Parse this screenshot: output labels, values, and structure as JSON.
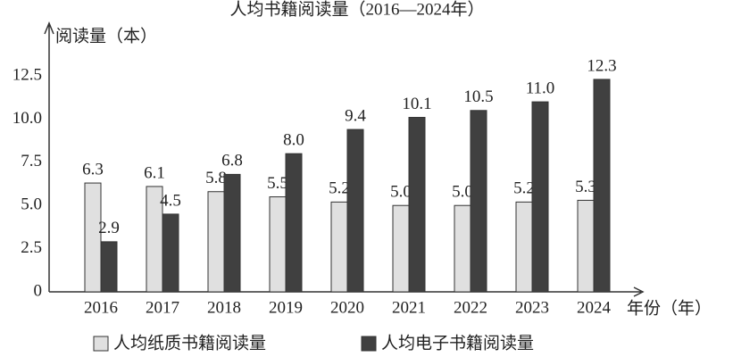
{
  "chart_data": {
    "type": "bar",
    "title": "人均书籍阅读量（2016—2024年）",
    "y_label": "阅读量（本）",
    "x_label": "年份（年）",
    "categories": [
      "2016",
      "2017",
      "2018",
      "2019",
      "2020",
      "2021",
      "2022",
      "2023",
      "2024"
    ],
    "series": [
      {
        "name": "人均纸质书籍阅读量",
        "color": "#e0e0e0",
        "values": [
          6.3,
          6.1,
          5.8,
          5.5,
          5.2,
          5.0,
          5.0,
          5.2,
          5.3
        ],
        "value_labels": [
          "6.3",
          "6.1",
          "5.8",
          "5.5",
          "5.2",
          "5.0",
          "5.0",
          "5.2",
          "5.3"
        ]
      },
      {
        "name": "人均电子书籍阅读量",
        "color": "#404040",
        "values": [
          2.9,
          4.5,
          6.8,
          8.0,
          9.4,
          10.1,
          10.5,
          11.0,
          12.3
        ],
        "value_labels": [
          "2.9",
          "4.5",
          "6.8",
          "8.0",
          "9.4",
          "10.1",
          "10.5",
          "11.0",
          "12.3"
        ]
      }
    ],
    "ylim": [
      0,
      15.5
    ],
    "yticks": [
      0,
      2.5,
      {
        "value": 5,
        "label": "5.0"
      },
      7.5,
      {
        "value": 10,
        "label": "10.0"
      },
      12.5
    ]
  }
}
